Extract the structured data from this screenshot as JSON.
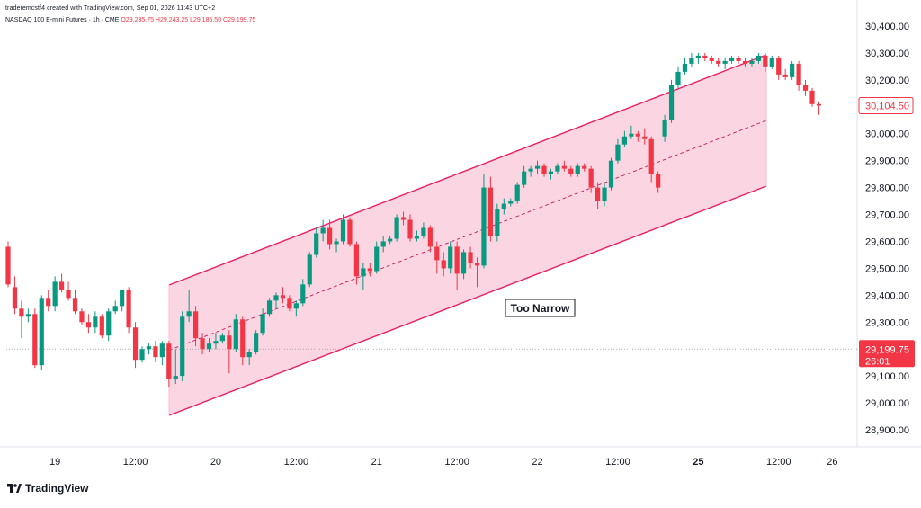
{
  "header": {
    "credit": "traderemcstf4 created with TradingView.com, Sep 01, 2026 11:43 UTC+2",
    "symbol": "NASDAQ 100 E-mini Futures · 1h · CME",
    "ohlc": "O29,235.75 H29,243.25 L29,185.50 C29,199.75"
  },
  "brand": {
    "name": "TradingView",
    "logo_icon": "tradingview-logo-icon"
  },
  "colors": {
    "up": "#089981",
    "down": "#f23645",
    "channel": "#e91e63",
    "channel_fill": "#f8bbd0"
  },
  "chart_data": {
    "type": "candlestick",
    "timeframe": "1h",
    "y_axis": {
      "ylim": [
        28840,
        30460
      ],
      "ticks": [
        28900,
        29000,
        29100,
        29200,
        29300,
        29400,
        29500,
        29600,
        29700,
        29800,
        29900,
        30000,
        30100,
        30200,
        30300,
        30400
      ],
      "tick_labels": [
        "28,900.00",
        "29,000.00",
        "29,100.00",
        "29,200.00",
        "29,300.00",
        "29,400.00",
        "29,500.00",
        "29,600.00",
        "29,700.00",
        "29,800.00",
        "29,900.00",
        "30,000.00",
        "30,100.00",
        "30,200.00",
        "30,300.00",
        "30,400.00"
      ]
    },
    "x_axis": {
      "labels": [
        "19",
        "12:00",
        "20",
        "12:00",
        "21",
        "12:00",
        "22",
        "12:00",
        "25",
        "12:00",
        "26"
      ],
      "label_bar_index": [
        7,
        19,
        31,
        43,
        55,
        67,
        79,
        91,
        103,
        115,
        123
      ],
      "bold_labels": [
        "25"
      ]
    },
    "last_price": {
      "label": "29,199.75",
      "countdown": "26:01",
      "value": 29199.75
    },
    "secondary_price": {
      "label": "30,104.50",
      "value": 30104.5
    },
    "candles": [
      [
        29580,
        29600,
        29430,
        29440
      ],
      [
        29430,
        29470,
        29330,
        29350
      ],
      [
        29350,
        29380,
        29240,
        29320
      ],
      [
        29320,
        29350,
        29300,
        29330
      ],
      [
        29330,
        29350,
        29130,
        29140
      ],
      [
        29140,
        29400,
        29120,
        29390
      ],
      [
        29390,
        29420,
        29340,
        29360
      ],
      [
        29360,
        29470,
        29340,
        29450
      ],
      [
        29450,
        29480,
        29410,
        29420
      ],
      [
        29420,
        29450,
        29380,
        29390
      ],
      [
        29390,
        29420,
        29330,
        29340
      ],
      [
        29340,
        29350,
        29290,
        29300
      ],
      [
        29300,
        29330,
        29260,
        29280
      ],
      [
        29280,
        29340,
        29260,
        29320
      ],
      [
        29320,
        29330,
        29240,
        29250
      ],
      [
        29250,
        29350,
        29230,
        29340
      ],
      [
        29340,
        29380,
        29330,
        29360
      ],
      [
        29360,
        29410,
        29340,
        29420
      ],
      [
        29420,
        29430,
        29260,
        29280
      ],
      [
        29280,
        29300,
        29130,
        29160
      ],
      [
        29160,
        29210,
        29150,
        29200
      ],
      [
        29200,
        29220,
        29180,
        29210
      ],
      [
        29210,
        29230,
        29150,
        29170
      ],
      [
        29170,
        29230,
        29140,
        29220
      ],
      [
        29220,
        29230,
        29060,
        29090
      ],
      [
        29090,
        29200,
        29070,
        29100
      ],
      [
        29100,
        29340,
        29080,
        29320
      ],
      [
        29320,
        29420,
        29300,
        29340
      ],
      [
        29340,
        29360,
        29210,
        29240
      ],
      [
        29240,
        29260,
        29180,
        29200
      ],
      [
        29200,
        29240,
        29190,
        29220
      ],
      [
        29220,
        29260,
        29200,
        29230
      ],
      [
        29230,
        29260,
        29220,
        29250
      ],
      [
        29250,
        29270,
        29110,
        29200
      ],
      [
        29200,
        29330,
        29190,
        29310
      ],
      [
        29310,
        29320,
        29140,
        29170
      ],
      [
        29170,
        29200,
        29140,
        29190
      ],
      [
        29190,
        29270,
        29180,
        29260
      ],
      [
        29260,
        29350,
        29250,
        29330
      ],
      [
        29330,
        29390,
        29320,
        29380
      ],
      [
        29380,
        29410,
        29350,
        29400
      ],
      [
        29400,
        29430,
        29370,
        29390
      ],
      [
        29390,
        29400,
        29340,
        29350
      ],
      [
        29350,
        29380,
        29320,
        29370
      ],
      [
        29370,
        29460,
        29360,
        29440
      ],
      [
        29440,
        29560,
        29430,
        29550
      ],
      [
        29550,
        29650,
        29540,
        29630
      ],
      [
        29630,
        29680,
        29600,
        29650
      ],
      [
        29650,
        29680,
        29570,
        29590
      ],
      [
        29590,
        29610,
        29560,
        29600
      ],
      [
        29600,
        29700,
        29590,
        29680
      ],
      [
        29680,
        29690,
        29580,
        29590
      ],
      [
        29590,
        29600,
        29440,
        29470
      ],
      [
        29470,
        29520,
        29420,
        29500
      ],
      [
        29500,
        29520,
        29470,
        29490
      ],
      [
        29490,
        29600,
        29480,
        29580
      ],
      [
        29580,
        29620,
        29560,
        29600
      ],
      [
        29600,
        29620,
        29590,
        29610
      ],
      [
        29610,
        29700,
        29600,
        29690
      ],
      [
        29690,
        29710,
        29660,
        29680
      ],
      [
        29680,
        29700,
        29600,
        29610
      ],
      [
        29610,
        29640,
        29600,
        29620
      ],
      [
        29620,
        29670,
        29610,
        29650
      ],
      [
        29650,
        29660,
        29560,
        29580
      ],
      [
        29580,
        29600,
        29480,
        29530
      ],
      [
        29530,
        29560,
        29470,
        29500
      ],
      [
        29500,
        29600,
        29480,
        29580
      ],
      [
        29580,
        29600,
        29420,
        29480
      ],
      [
        29480,
        29570,
        29460,
        29560
      ],
      [
        29560,
        29580,
        29500,
        29520
      ],
      [
        29520,
        29540,
        29430,
        29510
      ],
      [
        29510,
        29850,
        29500,
        29800
      ],
      [
        29800,
        29840,
        29600,
        29620
      ],
      [
        29620,
        29740,
        29600,
        29720
      ],
      [
        29720,
        29760,
        29700,
        29740
      ],
      [
        29740,
        29760,
        29730,
        29750
      ],
      [
        29750,
        29820,
        29740,
        29810
      ],
      [
        29810,
        29880,
        29800,
        29860
      ],
      [
        29860,
        29880,
        29840,
        29870
      ],
      [
        29870,
        29900,
        29850,
        29880
      ],
      [
        29880,
        29890,
        29840,
        29850
      ],
      [
        29850,
        29870,
        29830,
        29860
      ],
      [
        29860,
        29890,
        29850,
        29880
      ],
      [
        29880,
        29900,
        29860,
        29870
      ],
      [
        29870,
        29880,
        29840,
        29850
      ],
      [
        29850,
        29890,
        29840,
        29880
      ],
      [
        29880,
        29890,
        29860,
        29870
      ],
      [
        29870,
        29880,
        29780,
        29800
      ],
      [
        29800,
        29820,
        29720,
        29750
      ],
      [
        29750,
        29820,
        29730,
        29800
      ],
      [
        29800,
        29910,
        29790,
        29900
      ],
      [
        29900,
        29980,
        29890,
        29960
      ],
      [
        29960,
        30010,
        29950,
        29990
      ],
      [
        29990,
        30030,
        29980,
        30000
      ],
      [
        30000,
        30010,
        29970,
        29990
      ],
      [
        29990,
        30020,
        29960,
        29980
      ],
      [
        29980,
        29990,
        29820,
        29850
      ],
      [
        29850,
        29860,
        29780,
        29800
      ],
      [
        29990,
        30070,
        29970,
        30050
      ],
      [
        30050,
        30200,
        30040,
        30180
      ],
      [
        30180,
        30250,
        30170,
        30230
      ],
      [
        30230,
        30280,
        30220,
        30260
      ],
      [
        30260,
        30300,
        30250,
        30280
      ],
      [
        30280,
        30300,
        30260,
        30290
      ],
      [
        30290,
        30300,
        30270,
        30280
      ],
      [
        30280,
        30290,
        30260,
        30270
      ],
      [
        30270,
        30280,
        30250,
        30260
      ],
      [
        30260,
        30280,
        30240,
        30270
      ],
      [
        30270,
        30290,
        30260,
        30280
      ],
      [
        30280,
        30290,
        30260,
        30270
      ],
      [
        30270,
        30280,
        30250,
        30260
      ],
      [
        30260,
        30280,
        30250,
        30270
      ],
      [
        30270,
        30300,
        30260,
        30290
      ],
      [
        30290,
        30300,
        30230,
        30250
      ],
      [
        30250,
        30290,
        30240,
        30280
      ],
      [
        30280,
        30290,
        30200,
        30220
      ],
      [
        30220,
        30240,
        30200,
        30210
      ],
      [
        30210,
        30270,
        30200,
        30260
      ],
      [
        30260,
        30270,
        30160,
        30180
      ],
      [
        30180,
        30200,
        30140,
        30160
      ],
      [
        30160,
        30170,
        30100,
        30110
      ],
      [
        30110,
        30120,
        30070,
        30104.5
      ]
    ],
    "annotations": [
      {
        "type": "channel",
        "text": "Too Narrow"
      }
    ]
  }
}
